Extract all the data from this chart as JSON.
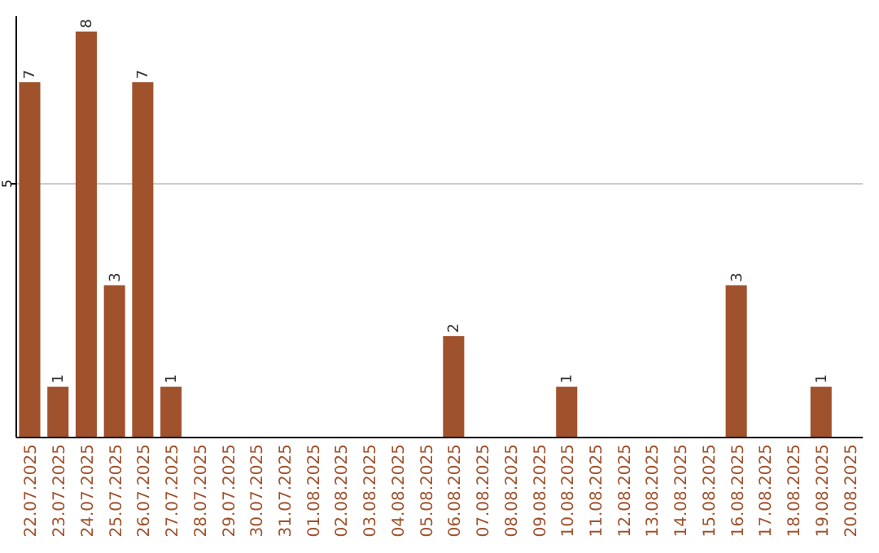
{
  "chart_data": {
    "type": "bar",
    "categories": [
      "22.07.2025",
      "23.07.2025",
      "24.07.2025",
      "25.07.2025",
      "26.07.2025",
      "27.07.2025",
      "28.07.2025",
      "29.07.2025",
      "30.07.2025",
      "31.07.2025",
      "01.08.2025",
      "02.08.2025",
      "03.08.2025",
      "04.08.2025",
      "05.08.2025",
      "06.08.2025",
      "07.08.2025",
      "08.08.2025",
      "09.08.2025",
      "10.08.2025",
      "11.08.2025",
      "12.08.2025",
      "13.08.2025",
      "14.08.2025",
      "15.08.2025",
      "16.08.2025",
      "17.08.2025",
      "18.08.2025",
      "19.08.2025",
      "20.08.2025"
    ],
    "values": [
      7,
      1,
      8,
      3,
      7,
      1,
      0,
      0,
      0,
      0,
      0,
      0,
      0,
      0,
      0,
      2,
      0,
      0,
      0,
      1,
      0,
      0,
      0,
      0,
      0,
      3,
      0,
      0,
      1,
      0
    ],
    "value_labels": [
      "7",
      "1",
      "8",
      "3",
      "7",
      "1",
      null,
      null,
      null,
      null,
      null,
      null,
      null,
      null,
      null,
      "2",
      null,
      null,
      null,
      "1",
      null,
      null,
      null,
      null,
      null,
      "3",
      null,
      null,
      "1",
      null
    ],
    "color": "#a0522d",
    "ylim": [
      0,
      8.3
    ],
    "yticks": [
      5
    ],
    "grid": "y"
  }
}
